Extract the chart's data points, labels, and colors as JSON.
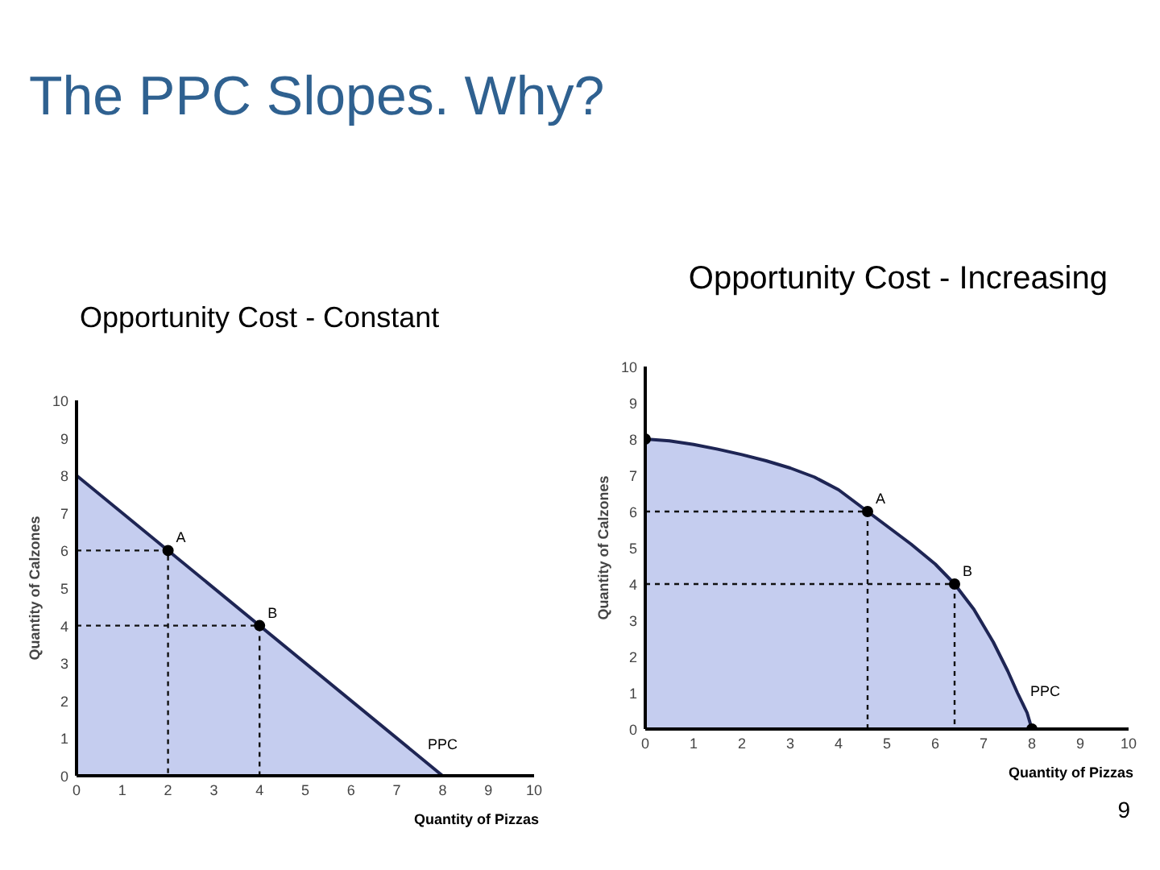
{
  "chart_data": [
    {
      "type": "area",
      "title": "The PPC Slopes. Why?",
      "subtitle": "Opportunity Cost - Constant",
      "xlabel": "Quantity of Pizzas",
      "ylabel": "Quantity of Calzones",
      "xlim": [
        0,
        10
      ],
      "ylim": [
        0,
        10
      ],
      "xticks": [
        0,
        1,
        2,
        3,
        4,
        5,
        6,
        7,
        8,
        9,
        10
      ],
      "yticks": [
        0,
        1,
        2,
        3,
        4,
        5,
        6,
        7,
        8,
        9,
        10
      ],
      "series": [
        {
          "color": "#c5cdef",
          "x": [
            0,
            8
          ],
          "values": [
            8,
            0
          ]
        },
        {
          "type": "line",
          "color": "#111111",
          "line_style": "dashed",
          "x": [
            0,
            2,
            2
          ],
          "values": [
            6,
            6,
            0
          ]
        },
        {
          "type": "line",
          "color": "#111111",
          "line_style": "dashed",
          "x": [
            0,
            4,
            4
          ],
          "values": [
            4,
            4,
            0
          ]
        },
        {
          "type": "scatter",
          "color": "#000000",
          "marker": "circle",
          "x": [
            2,
            4
          ],
          "values": [
            6,
            4
          ]
        }
      ],
      "annotations": [
        {
          "text": "A",
          "x": 2,
          "y": 6
        },
        {
          "text": "B",
          "x": 4,
          "y": 4
        },
        {
          "text": "PPC",
          "x": 7.5,
          "y": 0.5
        }
      ]
    },
    {
      "type": "area",
      "title": "Opportunity Cost - Increasing",
      "xlabel": "Quantity of Pizzas",
      "ylabel": "Quantity of Calzones",
      "xlim": [
        0,
        10
      ],
      "ylim": [
        0,
        10
      ],
      "xticks": [
        0,
        1,
        2,
        3,
        4,
        5,
        6,
        7,
        8,
        9,
        10
      ],
      "yticks": [
        0,
        1,
        2,
        3,
        4,
        5,
        6,
        7,
        8,
        9,
        10
      ],
      "series": [
        {
          "color": "#c5cdef",
          "x": [
            0,
            0.5,
            1,
            1.5,
            2,
            2.5,
            3,
            3.5,
            4,
            4.6,
            5,
            5.5,
            6,
            6.4,
            6.8,
            7.2,
            7.5,
            7.7,
            7.9,
            8
          ],
          "values": [
            8,
            7.95,
            7.85,
            7.72,
            7.57,
            7.4,
            7.2,
            6.95,
            6.6,
            6.0,
            5.6,
            5.1,
            4.55,
            4.0,
            3.3,
            2.4,
            1.6,
            1.0,
            0.45,
            0
          ]
        },
        {
          "type": "line",
          "color": "#111111",
          "line_style": "dashed",
          "x": [
            0,
            4.6,
            4.6
          ],
          "values": [
            6,
            6,
            0
          ]
        },
        {
          "type": "line",
          "color": "#111111",
          "line_style": "dashed",
          "x": [
            0,
            6.4,
            6.4
          ],
          "values": [
            4,
            4,
            0
          ]
        },
        {
          "type": "scatter",
          "color": "#000000",
          "marker": "circle",
          "x": [
            0,
            4.6,
            6.4,
            8
          ],
          "values": [
            8,
            6,
            4,
            0
          ]
        }
      ],
      "annotations": [
        {
          "text": "A",
          "x": 4.6,
          "y": 6
        },
        {
          "text": "B",
          "x": 6.4,
          "y": 4
        },
        {
          "text": "PPC",
          "x": 7.8,
          "y": 0.7
        },
        "9"
      ]
    }
  ]
}
